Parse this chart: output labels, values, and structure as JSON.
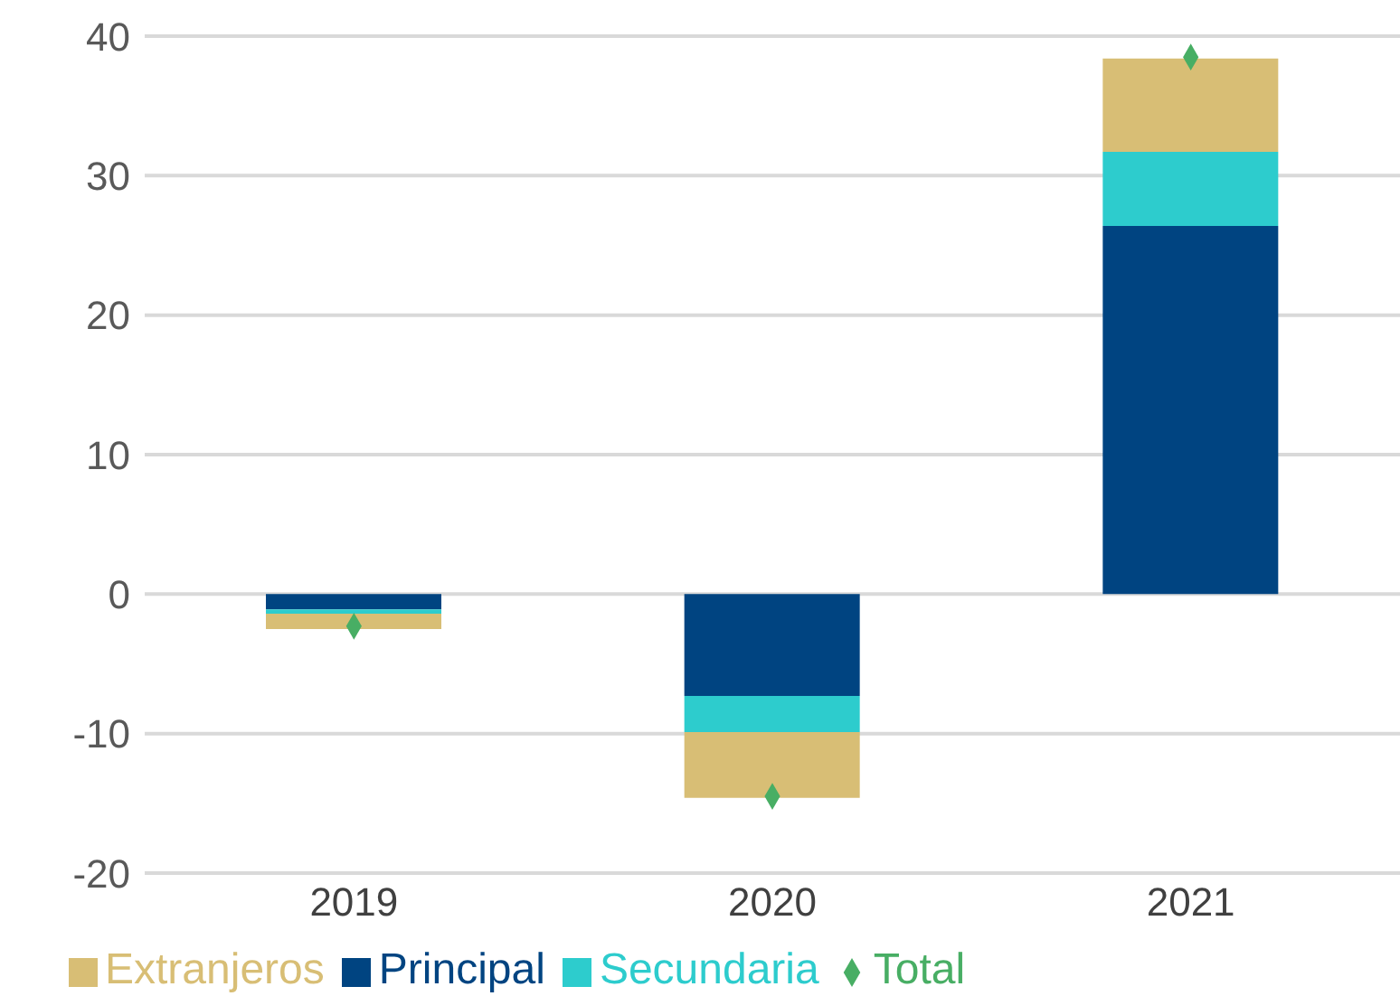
{
  "chart_data": {
    "type": "bar",
    "stacked": true,
    "categories": [
      "2019",
      "2020",
      "2021"
    ],
    "series": [
      {
        "name": "Principal",
        "color": "#004481",
        "values": [
          -1.1,
          -7.3,
          26.4
        ]
      },
      {
        "name": "Secundaria",
        "color": "#2dcccd",
        "values": [
          -0.3,
          -2.6,
          5.3
        ]
      },
      {
        "name": "Extranjeros",
        "color": "#d8be75",
        "values": [
          -1.1,
          -4.7,
          6.7
        ]
      },
      {
        "name": "Total",
        "type": "scatter",
        "marker": "diamond",
        "color": "#48ae64",
        "values": [
          -2.3,
          -14.5,
          38.5
        ]
      }
    ],
    "ylim": [
      -20,
      40
    ],
    "yticks": [
      -20,
      -10,
      0,
      10,
      20,
      30,
      40
    ],
    "grid": "y",
    "legend": "bottom"
  }
}
